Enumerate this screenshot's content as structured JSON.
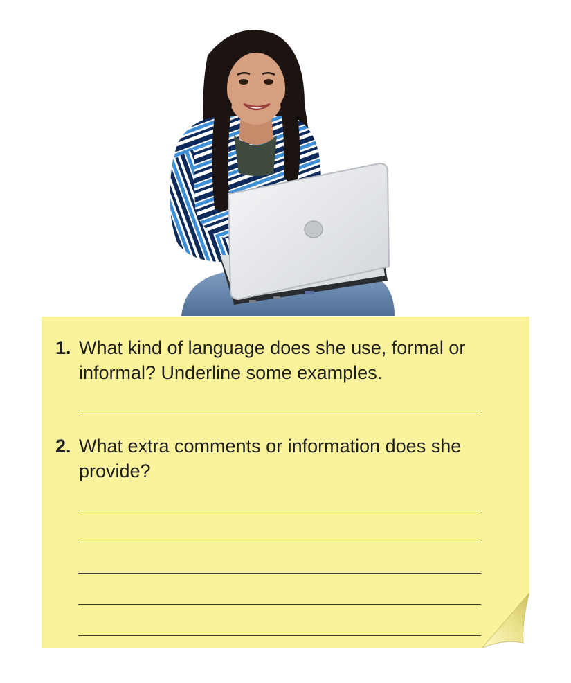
{
  "questions": [
    {
      "number": "1.",
      "text": "What kind of language does she use, formal or informal? Underline some examples."
    },
    {
      "number": "2.",
      "text": "What extra comments or information does she provide?"
    }
  ],
  "colors": {
    "note_background": "#fbf39c",
    "text": "#1e1e1e",
    "rule_lines": "#3a3a3a"
  },
  "photo": {
    "subject": "woman-with-laptop",
    "laptop_color": "#e9eaec",
    "shirt_colors": [
      "#0e2a5a",
      "#3f8fd6",
      "#ffffff"
    ],
    "jeans_color": "#6f8fb3"
  }
}
